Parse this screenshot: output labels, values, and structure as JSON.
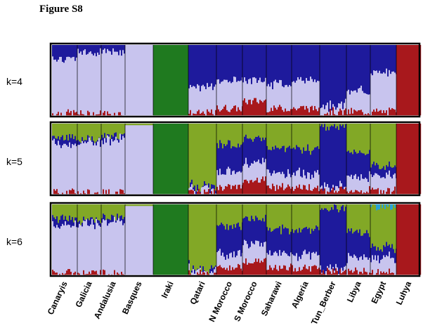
{
  "figure_title": "Figure S8",
  "colors": {
    "lavender": "#c8c4ee",
    "navy": "#1e1a9c",
    "green": "#1f7a1f",
    "olive": "#82a826",
    "red": "#a8181c",
    "cyan": "#29a3d6",
    "frame": "#000000"
  },
  "chart_data": {
    "type": "admixture-structure-barplot",
    "title": "Figure S8",
    "y_unit": "ancestry proportion (0-1)",
    "populations": [
      "Canaryis",
      "Galicia",
      "Andalusia",
      "Basques",
      "Iraki",
      "Qatari",
      "N Morocco",
      "S Morocco",
      "Saharawi",
      "Algeria",
      "Tun_Berber",
      "Libya",
      "Egypt",
      "Luhya"
    ],
    "panels": [
      {
        "k_label": "k=4",
        "components": [
          "red",
          "lavender",
          "navy",
          "green"
        ],
        "profiles": [
          {
            "population": "Canaryis",
            "values": [
              0.03,
              0.77,
              0.2,
              0.0
            ]
          },
          {
            "population": "Galicia",
            "values": [
              0.02,
              0.88,
              0.1,
              0.0
            ]
          },
          {
            "population": "Andalusia",
            "values": [
              0.02,
              0.88,
              0.1,
              0.0
            ]
          },
          {
            "population": "Basques",
            "values": [
              0.0,
              1.0,
              0.0,
              0.0
            ]
          },
          {
            "population": "Iraki",
            "values": [
              0.0,
              0.0,
              0.0,
              1.0
            ]
          },
          {
            "population": "Qatari",
            "values": [
              0.03,
              0.37,
              0.6,
              0.0
            ]
          },
          {
            "population": "N Morocco",
            "values": [
              0.1,
              0.4,
              0.5,
              0.0
            ]
          },
          {
            "population": "S Morocco",
            "values": [
              0.2,
              0.3,
              0.5,
              0.0
            ]
          },
          {
            "population": "Saharawi",
            "values": [
              0.1,
              0.35,
              0.55,
              0.0
            ]
          },
          {
            "population": "Algeria",
            "values": [
              0.1,
              0.4,
              0.5,
              0.0
            ]
          },
          {
            "population": "Tun_Berber",
            "values": [
              0.05,
              0.1,
              0.85,
              0.0
            ]
          },
          {
            "population": "Libya",
            "values": [
              0.05,
              0.3,
              0.65,
              0.0
            ]
          },
          {
            "population": "Egypt",
            "values": [
              0.05,
              0.55,
              0.4,
              0.0
            ]
          },
          {
            "population": "Luhya",
            "values": [
              1.0,
              0.0,
              0.0,
              0.0
            ]
          }
        ]
      },
      {
        "k_label": "k=5",
        "components": [
          "red",
          "lavender",
          "navy",
          "olive",
          "green"
        ],
        "profiles": [
          {
            "population": "Canaryis",
            "values": [
              0.03,
              0.67,
              0.1,
              0.2,
              0.0
            ]
          },
          {
            "population": "Galicia",
            "values": [
              0.02,
              0.7,
              0.05,
              0.23,
              0.0
            ]
          },
          {
            "population": "Andalusia",
            "values": [
              0.02,
              0.75,
              0.05,
              0.18,
              0.0
            ]
          },
          {
            "population": "Basques",
            "values": [
              0.0,
              0.98,
              0.0,
              0.02,
              0.0
            ]
          },
          {
            "population": "Iraki",
            "values": [
              0.0,
              0.0,
              0.0,
              0.0,
              1.0
            ]
          },
          {
            "population": "Qatari",
            "values": [
              0.02,
              0.05,
              0.03,
              0.9,
              0.0
            ]
          },
          {
            "population": "N Morocco",
            "values": [
              0.1,
              0.2,
              0.4,
              0.3,
              0.0
            ]
          },
          {
            "population": "S Morocco",
            "values": [
              0.2,
              0.25,
              0.35,
              0.2,
              0.0
            ]
          },
          {
            "population": "Saharawi",
            "values": [
              0.1,
              0.2,
              0.35,
              0.35,
              0.0
            ]
          },
          {
            "population": "Algeria",
            "values": [
              0.1,
              0.2,
              0.35,
              0.35,
              0.0
            ]
          },
          {
            "population": "Tun_Berber",
            "values": [
              0.05,
              0.05,
              0.85,
              0.05,
              0.0
            ]
          },
          {
            "population": "Libya",
            "values": [
              0.05,
              0.2,
              0.35,
              0.4,
              0.0
            ]
          },
          {
            "population": "Egypt",
            "values": [
              0.05,
              0.2,
              0.15,
              0.6,
              0.0
            ]
          },
          {
            "population": "Luhya",
            "values": [
              1.0,
              0.0,
              0.0,
              0.0,
              0.0
            ]
          }
        ]
      },
      {
        "k_label": "k=6",
        "components": [
          "red",
          "lavender",
          "navy",
          "olive",
          "green",
          "cyan"
        ],
        "profiles": [
          {
            "population": "Canaryis",
            "values": [
              0.03,
              0.67,
              0.1,
              0.2,
              0.0,
              0.0
            ]
          },
          {
            "population": "Galicia",
            "values": [
              0.02,
              0.7,
              0.05,
              0.23,
              0.0,
              0.0
            ]
          },
          {
            "population": "Andalusia",
            "values": [
              0.02,
              0.75,
              0.05,
              0.18,
              0.0,
              0.0
            ]
          },
          {
            "population": "Basques",
            "values": [
              0.0,
              0.98,
              0.0,
              0.02,
              0.0,
              0.0
            ]
          },
          {
            "population": "Iraki",
            "values": [
              0.0,
              0.0,
              0.0,
              0.0,
              1.0,
              0.0
            ]
          },
          {
            "population": "Qatari",
            "values": [
              0.02,
              0.05,
              0.03,
              0.9,
              0.0,
              0.0
            ]
          },
          {
            "population": "N Morocco",
            "values": [
              0.1,
              0.2,
              0.4,
              0.3,
              0.0,
              0.0
            ]
          },
          {
            "population": "S Morocco",
            "values": [
              0.2,
              0.25,
              0.35,
              0.2,
              0.0,
              0.0
            ]
          },
          {
            "population": "Saharawi",
            "values": [
              0.1,
              0.2,
              0.35,
              0.35,
              0.0,
              0.0
            ]
          },
          {
            "population": "Algeria",
            "values": [
              0.1,
              0.2,
              0.35,
              0.35,
              0.0,
              0.0
            ]
          },
          {
            "population": "Tun_Berber",
            "values": [
              0.05,
              0.05,
              0.85,
              0.05,
              0.0,
              0.0
            ]
          },
          {
            "population": "Libya",
            "values": [
              0.05,
              0.2,
              0.35,
              0.4,
              0.0,
              0.0
            ]
          },
          {
            "population": "Egypt",
            "values": [
              0.05,
              0.2,
              0.15,
              0.57,
              0.0,
              0.03
            ]
          },
          {
            "population": "Luhya",
            "values": [
              1.0,
              0.0,
              0.0,
              0.0,
              0.0,
              0.0
            ]
          }
        ]
      }
    ]
  }
}
